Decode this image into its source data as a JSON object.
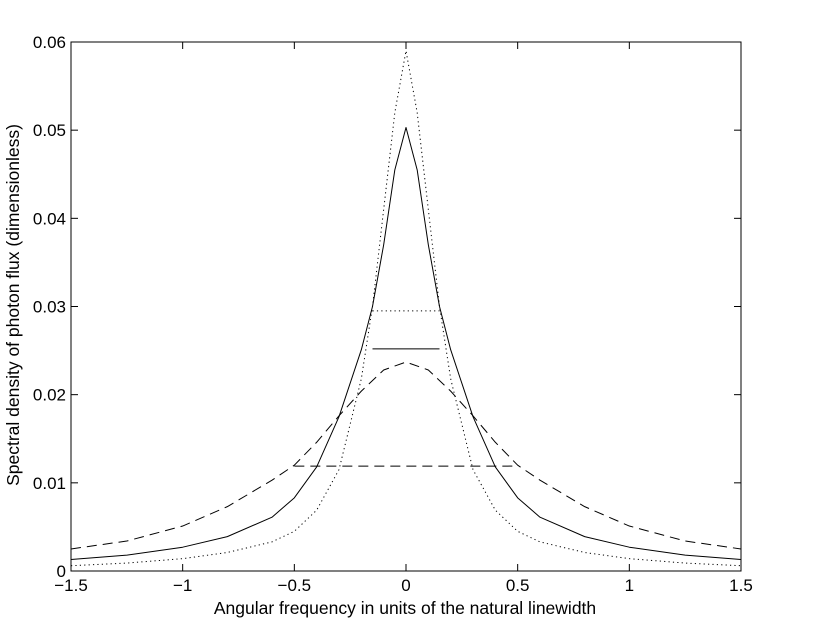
{
  "chart_data": {
    "type": "line",
    "xlabel": "Angular frequency in units of the natural linewidth",
    "ylabel": "Spectral density of photon flux (dimensionless)",
    "xlim": [
      -1.5,
      1.5
    ],
    "ylim": [
      0,
      0.06
    ],
    "x_ticks": [
      -1.5,
      -1,
      -0.5,
      0,
      0.5,
      1,
      1.5
    ],
    "x_tick_labels": [
      "−1.5",
      "−1",
      "−0.5",
      "0",
      "0.5",
      "1",
      "1.5"
    ],
    "y_ticks": [
      0,
      0.01,
      0.02,
      0.03,
      0.04,
      0.05,
      0.06
    ],
    "y_tick_labels": [
      "0",
      "0.01",
      "0.02",
      "0.03",
      "0.04",
      "0.05",
      "0.06"
    ],
    "grid": false,
    "box": true,
    "series": [
      {
        "style": "solid",
        "x": [
          -1.5,
          -1.25,
          -1.0,
          -0.8,
          -0.6,
          -0.5,
          -0.4,
          -0.3,
          -0.25,
          -0.2,
          -0.15,
          -0.1,
          -0.05,
          0.0,
          0.05,
          0.1,
          0.15,
          0.2,
          0.25,
          0.3,
          0.4,
          0.5,
          0.6,
          0.8,
          1.0,
          1.25,
          1.5
        ],
        "y": [
          0.0013,
          0.0018,
          0.0027,
          0.0039,
          0.0061,
          0.0083,
          0.0118,
          0.0175,
          0.0213,
          0.0251,
          0.03,
          0.037,
          0.0455,
          0.0503,
          0.0455,
          0.037,
          0.03,
          0.0251,
          0.0213,
          0.0175,
          0.0118,
          0.0083,
          0.0061,
          0.0039,
          0.0027,
          0.0018,
          0.0013
        ],
        "half_max_y": 0.0252,
        "half_max_x": [
          -0.15,
          0.15
        ]
      },
      {
        "style": "dashed",
        "x": [
          -1.5,
          -1.25,
          -1.0,
          -0.8,
          -0.6,
          -0.5,
          -0.4,
          -0.3,
          -0.2,
          -0.1,
          0.0,
          0.1,
          0.2,
          0.3,
          0.4,
          0.5,
          0.6,
          0.8,
          1.0,
          1.25,
          1.5
        ],
        "y": [
          0.0025,
          0.0034,
          0.0051,
          0.0073,
          0.0103,
          0.012,
          0.0146,
          0.0176,
          0.0204,
          0.0228,
          0.0237,
          0.0228,
          0.0204,
          0.0176,
          0.0146,
          0.012,
          0.0103,
          0.0073,
          0.0051,
          0.0034,
          0.0025
        ],
        "half_max_y": 0.0119,
        "half_max_x": [
          -0.5,
          0.5
        ]
      },
      {
        "style": "dotted",
        "x": [
          -1.5,
          -1.25,
          -1.0,
          -0.8,
          -0.6,
          -0.5,
          -0.4,
          -0.3,
          -0.2,
          -0.15,
          -0.1,
          -0.05,
          0.0,
          0.05,
          0.1,
          0.15,
          0.2,
          0.3,
          0.4,
          0.5,
          0.6,
          0.8,
          1.0,
          1.25,
          1.5
        ],
        "y": [
          0.0006,
          0.0009,
          0.0014,
          0.0021,
          0.0033,
          0.0045,
          0.0069,
          0.0115,
          0.0218,
          0.03,
          0.041,
          0.052,
          0.059,
          0.052,
          0.041,
          0.03,
          0.0218,
          0.0115,
          0.0069,
          0.0045,
          0.0033,
          0.0021,
          0.0014,
          0.0009,
          0.0006
        ],
        "half_max_y": 0.0295,
        "half_max_x": [
          -0.15,
          0.15
        ]
      }
    ]
  }
}
